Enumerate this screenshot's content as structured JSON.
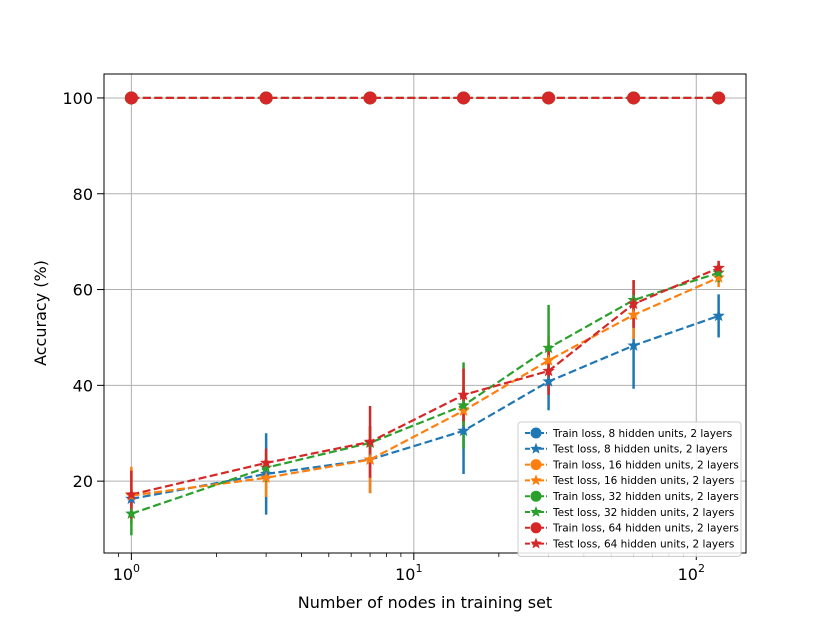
{
  "chart_data": {
    "type": "line",
    "title": "",
    "xlabel": "Number of nodes in training set",
    "ylabel": "Accuracy (%)",
    "xscale": "log",
    "xlim": [
      0.8,
      150
    ],
    "ylim": [
      5,
      105
    ],
    "xticks": [
      {
        "value": 1,
        "base": "10",
        "exp": "0"
      },
      {
        "value": 10,
        "base": "10",
        "exp": "1"
      },
      {
        "value": 100,
        "base": "10",
        "exp": "2"
      }
    ],
    "yticks": [
      20,
      40,
      60,
      80,
      100
    ],
    "grid": true,
    "legend_position": "lower right",
    "x": [
      1,
      3,
      7,
      15,
      30,
      60,
      120
    ],
    "series": [
      {
        "name": "Train loss, 8 hidden units, 2 layers",
        "color": "#1f77b4",
        "marker": "circle",
        "values": [
          100,
          100,
          100,
          100,
          100,
          100,
          100
        ],
        "errors": [
          0,
          0,
          0,
          0,
          0,
          0,
          0
        ]
      },
      {
        "name": "Test loss, 8 hidden units, 2 layers",
        "color": "#1f77b4",
        "marker": "star",
        "values": [
          16.3,
          21.5,
          24.5,
          30.5,
          40.8,
          48.3,
          54.5
        ],
        "errors": [
          2,
          8.5,
          7,
          9,
          6,
          9,
          4.5
        ]
      },
      {
        "name": "Train loss, 16 hidden units, 2 layers",
        "color": "#ff7f0e",
        "marker": "circle",
        "values": [
          100,
          100,
          100,
          100,
          100,
          100,
          100
        ],
        "errors": [
          0,
          0,
          0,
          0,
          0,
          0,
          0
        ]
      },
      {
        "name": "Test loss, 16 hidden units, 2 layers",
        "color": "#ff7f0e",
        "marker": "star",
        "values": [
          17,
          20.7,
          24.5,
          34.7,
          45.2,
          54.7,
          62.5
        ],
        "errors": [
          6,
          4,
          7,
          5,
          5,
          5,
          2
        ]
      },
      {
        "name": "Train loss, 32 hidden units, 2 layers",
        "color": "#2ca02c",
        "marker": "circle",
        "values": [
          100,
          100,
          100,
          100,
          100,
          100,
          100
        ],
        "errors": [
          0,
          0,
          0,
          0,
          0,
          0,
          0
        ]
      },
      {
        "name": "Test loss, 32 hidden units, 2 layers",
        "color": "#2ca02c",
        "marker": "star",
        "values": [
          13.2,
          22.8,
          28,
          35.8,
          47.8,
          57.8,
          63.5
        ],
        "errors": [
          4.5,
          3,
          3.5,
          9,
          9,
          4,
          2
        ]
      },
      {
        "name": "Train loss, 64 hidden units, 2 layers",
        "color": "#d62728",
        "marker": "circle",
        "values": [
          100,
          100,
          100,
          100,
          100,
          100,
          100
        ],
        "errors": [
          0,
          0,
          0,
          0,
          0,
          0,
          0
        ]
      },
      {
        "name": "Test loss, 64 hidden units, 2 layers",
        "color": "#d62728",
        "marker": "star",
        "values": [
          17.2,
          23.8,
          28.2,
          38,
          43,
          57,
          64.5
        ],
        "errors": [
          5,
          3,
          7.5,
          5.5,
          5,
          5,
          1.5
        ]
      }
    ]
  }
}
